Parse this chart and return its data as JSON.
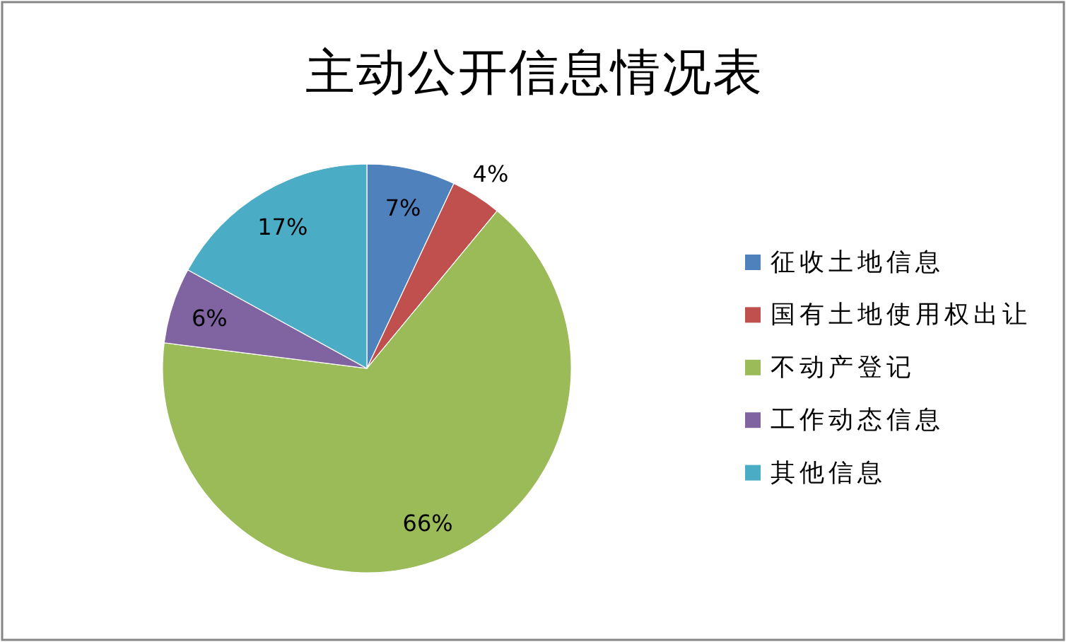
{
  "chart_data": {
    "type": "pie",
    "title": "主动公开信息情况表",
    "categories": [
      "征收土地信息",
      "国有土地使用权出让",
      "不动产登记",
      "工作动态信息",
      "其他信息"
    ],
    "values": [
      7,
      4,
      66,
      6,
      17
    ],
    "colors": [
      "#4f81bd",
      "#c0504d",
      "#9bbb59",
      "#8064a2",
      "#4bacc6"
    ],
    "value_labels": [
      "7%",
      "4%",
      "66%",
      "6%",
      "17%"
    ],
    "legend": "right"
  }
}
